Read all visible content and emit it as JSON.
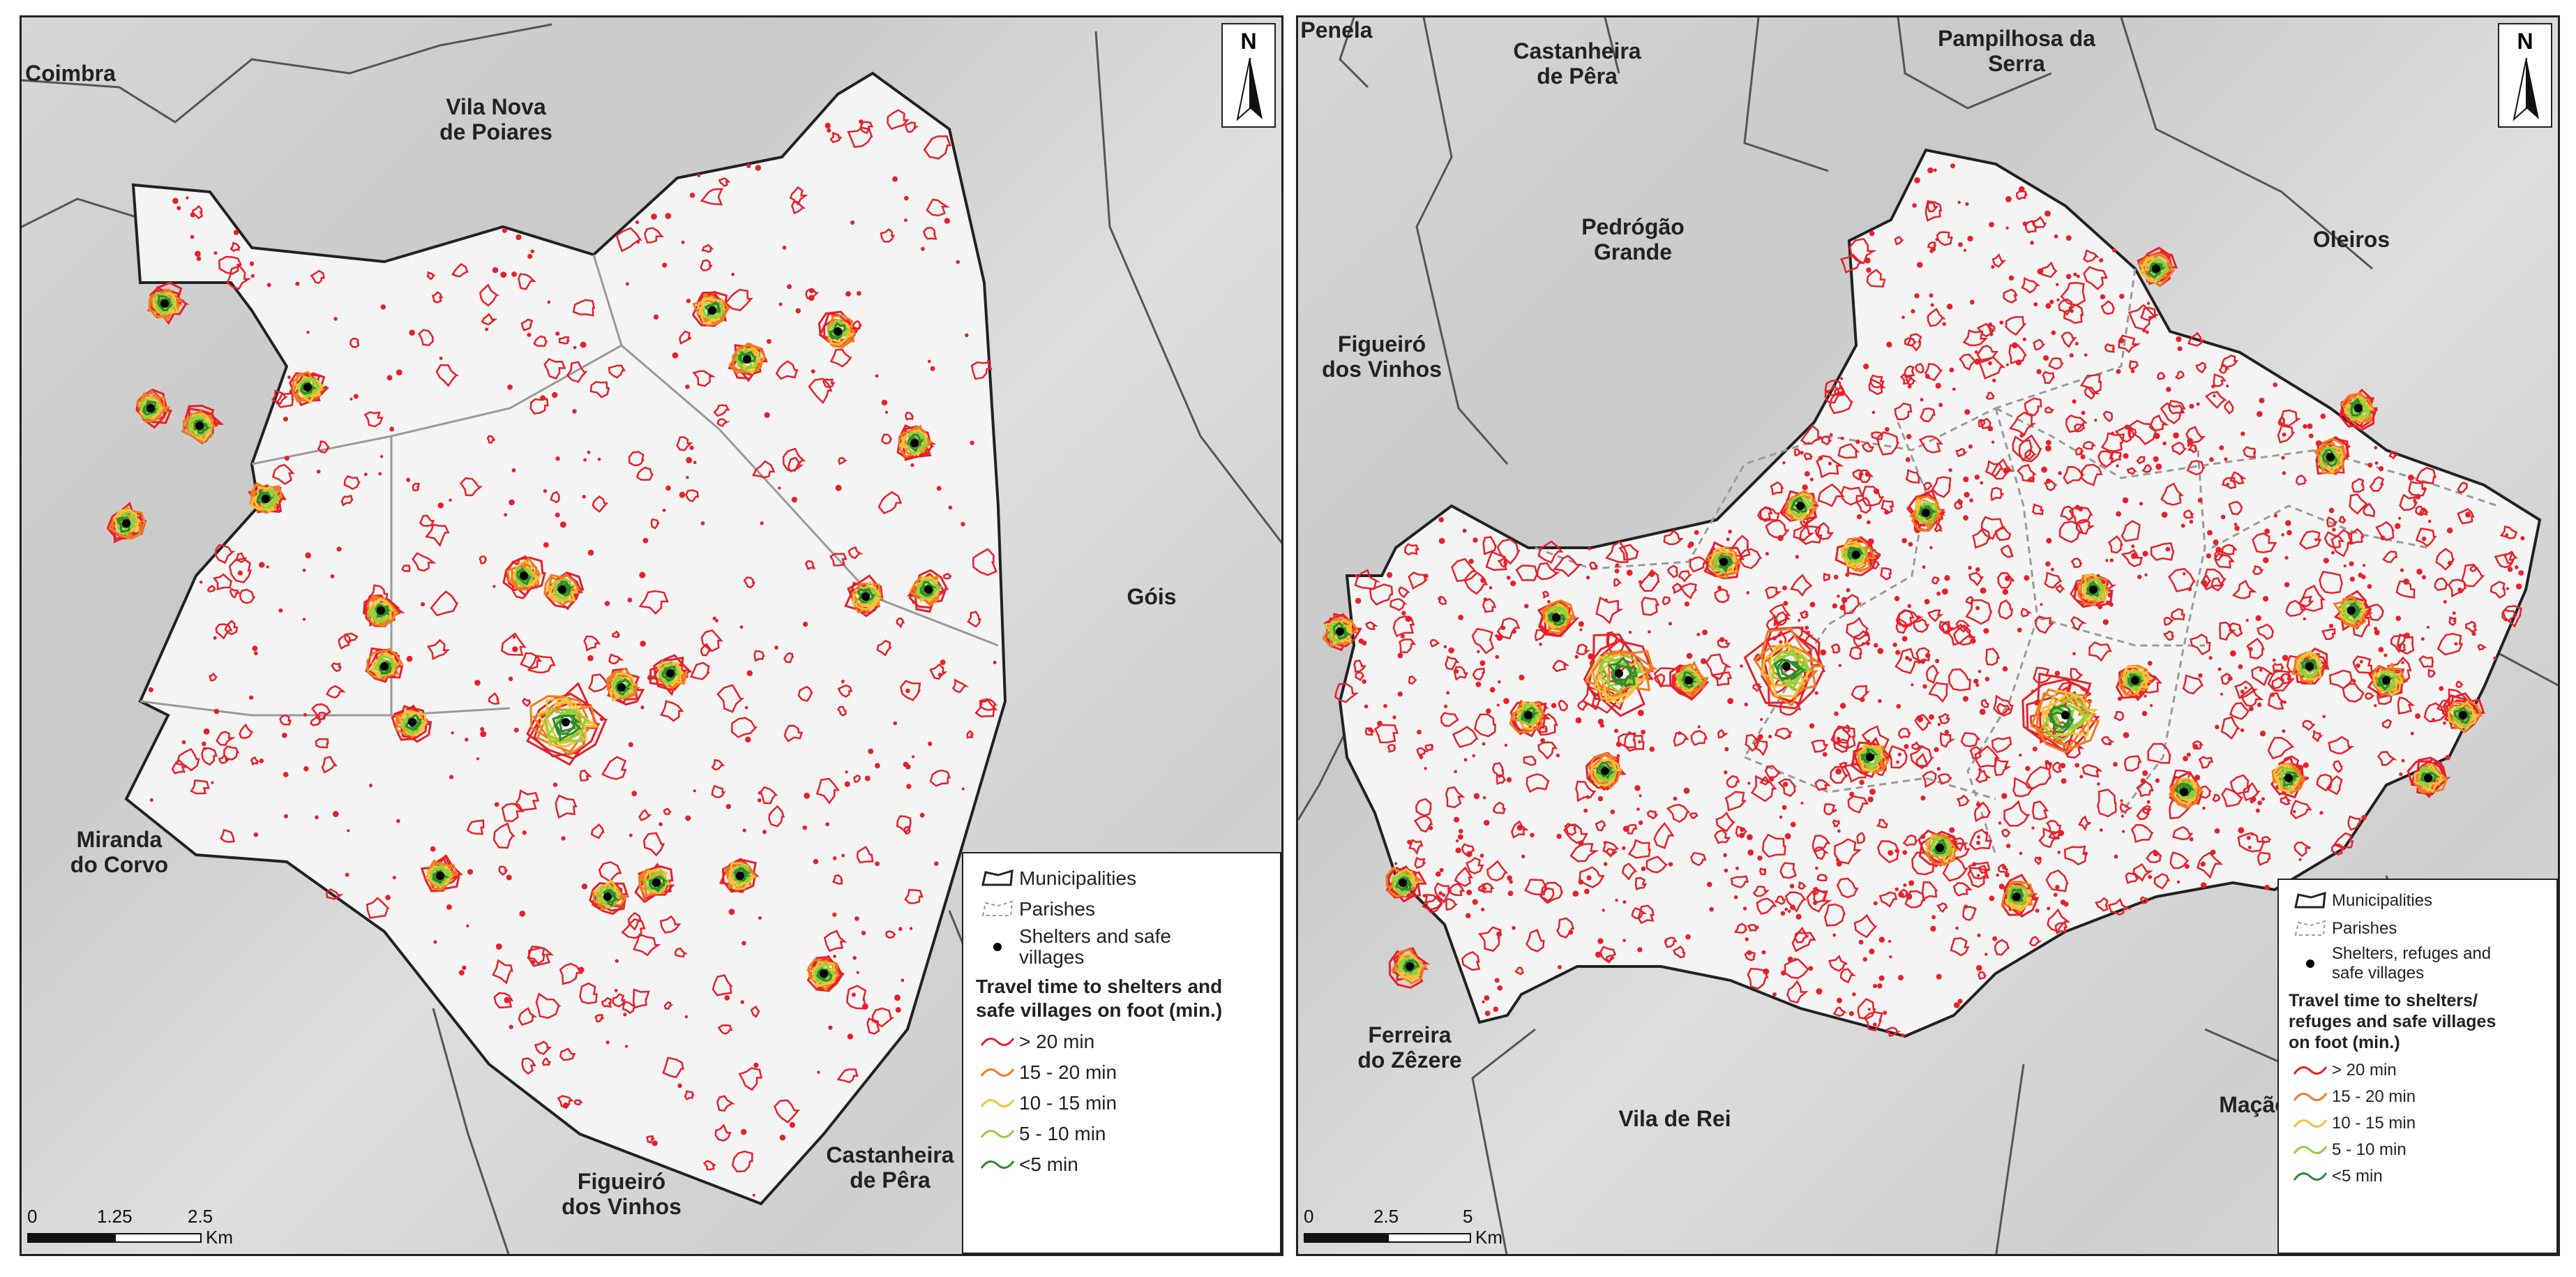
{
  "left_map": {
    "places": [
      "Coimbra",
      "Vila Nova\nde Poiares",
      "Góis",
      "Miranda\ndo Corvo",
      "Figueiró\ndos Vinhos",
      "Castanheira\nde Pêra"
    ],
    "north_label": "N",
    "legend": {
      "municipalities": "Municipalities",
      "parishes": "Parishes",
      "shelters": "Shelters and safe\nvillages",
      "title": "Travel time to shelters and\nsafe villages on foot (min.)",
      "classes": [
        "> 20 min",
        "15 - 20 min",
        "10 - 15 min",
        "5 - 10 min",
        "<5 min"
      ]
    },
    "scale": {
      "ticks": [
        "0",
        "1.25",
        "2.5"
      ],
      "unit": "Km"
    }
  },
  "right_map": {
    "places": [
      "Penela",
      "Castanheira\nde Pêra",
      "Pampilhosa da\nSerra",
      "Pedrógão\nGrande",
      "Oleiros",
      "Figueiró\ndos Vinhos",
      "Ferreira\ndo Zêzere",
      "Vila de Rei",
      "Mação"
    ],
    "north_label": "N",
    "legend": {
      "municipalities": "Municipalities",
      "parishes": "Parishes",
      "shelters": "Shelters, refuges and\nsafe villages",
      "title": "Travel time to shelters/\nrefuges and safe villages\non foot (min.)",
      "classes": [
        "> 20 min",
        "15 - 20 min",
        "10 - 15 min",
        "5 - 10 min",
        "<5 min"
      ]
    },
    "scale": {
      "ticks": [
        "0",
        "2.5",
        "5"
      ],
      "unit": "Km"
    }
  },
  "colors": {
    "gt20": "#e8202a",
    "c15_20": "#f07d1e",
    "c10_15": "#f2c43a",
    "c5_10": "#8fd13a",
    "lt5": "#2e8b2e",
    "shelter": "#000000",
    "boundary": "#222222",
    "parish": "#9a9a9a"
  }
}
